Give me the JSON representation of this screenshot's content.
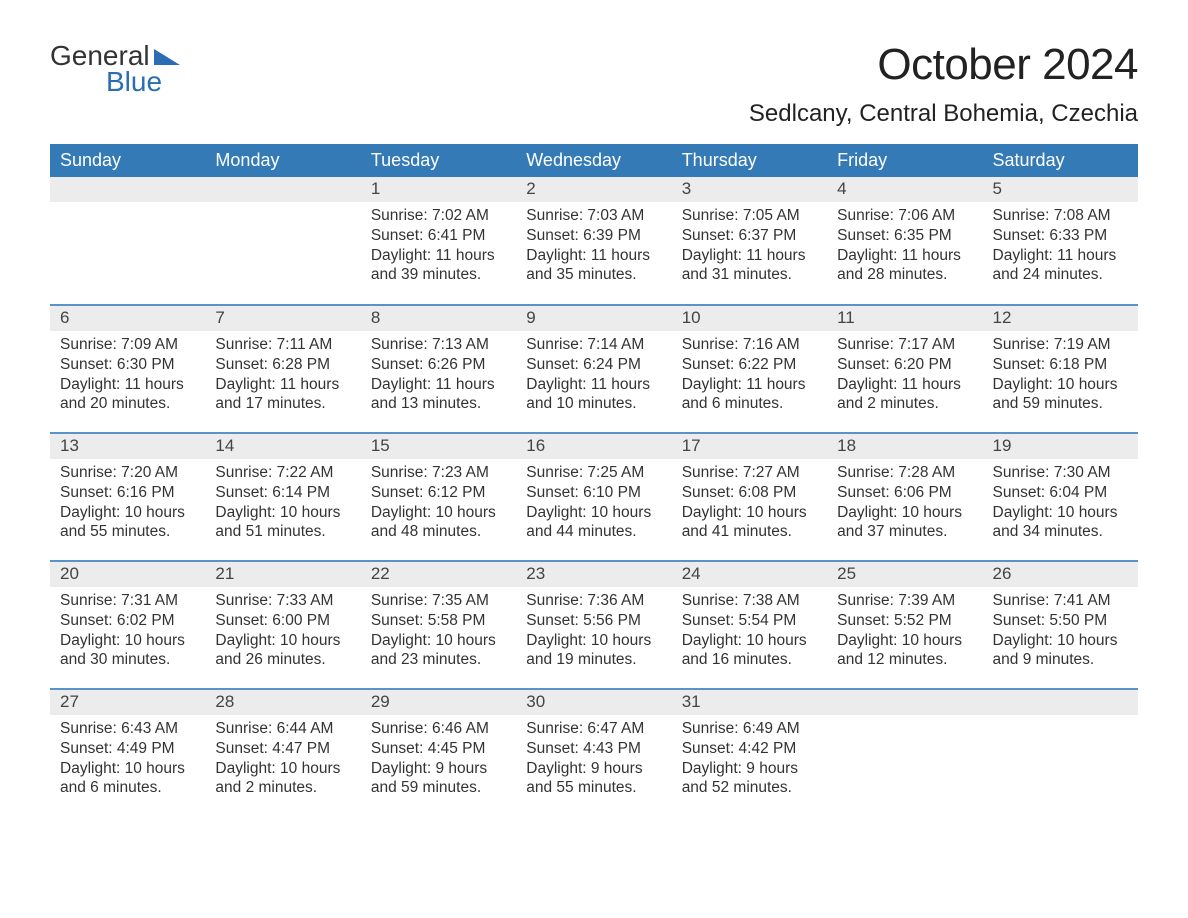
{
  "logo": {
    "text1": "General",
    "text2": "Blue"
  },
  "title": "October 2024",
  "location": "Sedlcany, Central Bohemia, Czechia",
  "colors": {
    "header_bg": "#337ab7",
    "header_text": "#ffffff",
    "daynum_bg": "#ececec",
    "row_divider": "#5a92c9",
    "logo_blue": "#2a6db4",
    "body_text": "#333333",
    "page_bg": "#ffffff"
  },
  "typography": {
    "title_fontsize": 44,
    "location_fontsize": 24,
    "weekday_fontsize": 18,
    "daynum_fontsize": 17,
    "body_fontsize": 15.5
  },
  "weekdays": [
    "Sunday",
    "Monday",
    "Tuesday",
    "Wednesday",
    "Thursday",
    "Friday",
    "Saturday"
  ],
  "weeks": [
    [
      {
        "n": "",
        "sunrise": "",
        "sunset": "",
        "daylight": ""
      },
      {
        "n": "",
        "sunrise": "",
        "sunset": "",
        "daylight": ""
      },
      {
        "n": "1",
        "sunrise": "7:02 AM",
        "sunset": "6:41 PM",
        "daylight": "11 hours and 39 minutes."
      },
      {
        "n": "2",
        "sunrise": "7:03 AM",
        "sunset": "6:39 PM",
        "daylight": "11 hours and 35 minutes."
      },
      {
        "n": "3",
        "sunrise": "7:05 AM",
        "sunset": "6:37 PM",
        "daylight": "11 hours and 31 minutes."
      },
      {
        "n": "4",
        "sunrise": "7:06 AM",
        "sunset": "6:35 PM",
        "daylight": "11 hours and 28 minutes."
      },
      {
        "n": "5",
        "sunrise": "7:08 AM",
        "sunset": "6:33 PM",
        "daylight": "11 hours and 24 minutes."
      }
    ],
    [
      {
        "n": "6",
        "sunrise": "7:09 AM",
        "sunset": "6:30 PM",
        "daylight": "11 hours and 20 minutes."
      },
      {
        "n": "7",
        "sunrise": "7:11 AM",
        "sunset": "6:28 PM",
        "daylight": "11 hours and 17 minutes."
      },
      {
        "n": "8",
        "sunrise": "7:13 AM",
        "sunset": "6:26 PM",
        "daylight": "11 hours and 13 minutes."
      },
      {
        "n": "9",
        "sunrise": "7:14 AM",
        "sunset": "6:24 PM",
        "daylight": "11 hours and 10 minutes."
      },
      {
        "n": "10",
        "sunrise": "7:16 AM",
        "sunset": "6:22 PM",
        "daylight": "11 hours and 6 minutes."
      },
      {
        "n": "11",
        "sunrise": "7:17 AM",
        "sunset": "6:20 PM",
        "daylight": "11 hours and 2 minutes."
      },
      {
        "n": "12",
        "sunrise": "7:19 AM",
        "sunset": "6:18 PM",
        "daylight": "10 hours and 59 minutes."
      }
    ],
    [
      {
        "n": "13",
        "sunrise": "7:20 AM",
        "sunset": "6:16 PM",
        "daylight": "10 hours and 55 minutes."
      },
      {
        "n": "14",
        "sunrise": "7:22 AM",
        "sunset": "6:14 PM",
        "daylight": "10 hours and 51 minutes."
      },
      {
        "n": "15",
        "sunrise": "7:23 AM",
        "sunset": "6:12 PM",
        "daylight": "10 hours and 48 minutes."
      },
      {
        "n": "16",
        "sunrise": "7:25 AM",
        "sunset": "6:10 PM",
        "daylight": "10 hours and 44 minutes."
      },
      {
        "n": "17",
        "sunrise": "7:27 AM",
        "sunset": "6:08 PM",
        "daylight": "10 hours and 41 minutes."
      },
      {
        "n": "18",
        "sunrise": "7:28 AM",
        "sunset": "6:06 PM",
        "daylight": "10 hours and 37 minutes."
      },
      {
        "n": "19",
        "sunrise": "7:30 AM",
        "sunset": "6:04 PM",
        "daylight": "10 hours and 34 minutes."
      }
    ],
    [
      {
        "n": "20",
        "sunrise": "7:31 AM",
        "sunset": "6:02 PM",
        "daylight": "10 hours and 30 minutes."
      },
      {
        "n": "21",
        "sunrise": "7:33 AM",
        "sunset": "6:00 PM",
        "daylight": "10 hours and 26 minutes."
      },
      {
        "n": "22",
        "sunrise": "7:35 AM",
        "sunset": "5:58 PM",
        "daylight": "10 hours and 23 minutes."
      },
      {
        "n": "23",
        "sunrise": "7:36 AM",
        "sunset": "5:56 PM",
        "daylight": "10 hours and 19 minutes."
      },
      {
        "n": "24",
        "sunrise": "7:38 AM",
        "sunset": "5:54 PM",
        "daylight": "10 hours and 16 minutes."
      },
      {
        "n": "25",
        "sunrise": "7:39 AM",
        "sunset": "5:52 PM",
        "daylight": "10 hours and 12 minutes."
      },
      {
        "n": "26",
        "sunrise": "7:41 AM",
        "sunset": "5:50 PM",
        "daylight": "10 hours and 9 minutes."
      }
    ],
    [
      {
        "n": "27",
        "sunrise": "6:43 AM",
        "sunset": "4:49 PM",
        "daylight": "10 hours and 6 minutes."
      },
      {
        "n": "28",
        "sunrise": "6:44 AM",
        "sunset": "4:47 PM",
        "daylight": "10 hours and 2 minutes."
      },
      {
        "n": "29",
        "sunrise": "6:46 AM",
        "sunset": "4:45 PM",
        "daylight": "9 hours and 59 minutes."
      },
      {
        "n": "30",
        "sunrise": "6:47 AM",
        "sunset": "4:43 PM",
        "daylight": "9 hours and 55 minutes."
      },
      {
        "n": "31",
        "sunrise": "6:49 AM",
        "sunset": "4:42 PM",
        "daylight": "9 hours and 52 minutes."
      },
      {
        "n": "",
        "sunrise": "",
        "sunset": "",
        "daylight": ""
      },
      {
        "n": "",
        "sunrise": "",
        "sunset": "",
        "daylight": ""
      }
    ]
  ],
  "labels": {
    "sunrise": "Sunrise:",
    "sunset": "Sunset:",
    "daylight": "Daylight:"
  }
}
